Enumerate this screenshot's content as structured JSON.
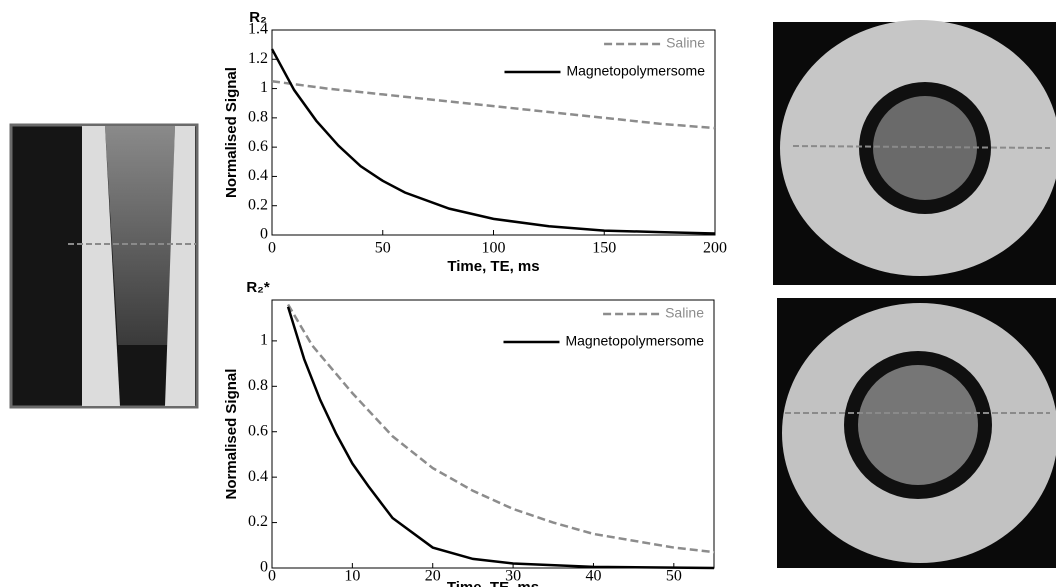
{
  "chart_data": [
    {
      "type": "line",
      "title": "R₂",
      "x_label": "Time, TE, ms",
      "y_label": "Normalised Signal",
      "xlim": [
        0,
        200
      ],
      "xticks": [
        0,
        50,
        100,
        150,
        200
      ],
      "ylim": [
        0,
        1.4
      ],
      "yticks": [
        0,
        0.2,
        0.4,
        0.6,
        0.8,
        1,
        1.2,
        1.4
      ],
      "legend": "upper right",
      "series": [
        {
          "name": "Saline",
          "color": "#8c8c8c",
          "dash": true,
          "x": [
            0,
            25,
            50,
            75,
            100,
            125,
            150,
            175,
            200
          ],
          "values": [
            1.05,
            1.0,
            0.96,
            0.92,
            0.88,
            0.84,
            0.8,
            0.76,
            0.73
          ]
        },
        {
          "name": "Magnetopolymersome",
          "color": "#000000",
          "dash": false,
          "x": [
            0,
            10,
            20,
            30,
            40,
            50,
            60,
            80,
            100,
            125,
            150,
            175,
            200
          ],
          "values": [
            1.27,
            0.99,
            0.78,
            0.61,
            0.47,
            0.37,
            0.29,
            0.18,
            0.11,
            0.06,
            0.03,
            0.02,
            0.01
          ]
        }
      ]
    },
    {
      "type": "line",
      "title": "R₂*",
      "x_label": "Time, TE, ms",
      "y_label": "Normalised Signal",
      "xlim": [
        0,
        55
      ],
      "xticks": [
        0,
        10,
        20,
        30,
        40,
        50
      ],
      "ylim": [
        0,
        1.18
      ],
      "yticks": [
        0,
        0.2,
        0.4,
        0.6,
        0.8,
        1
      ],
      "legend": "upper right",
      "series": [
        {
          "name": "Saline",
          "color": "#8c8c8c",
          "dash": true,
          "x": [
            2,
            5,
            10,
            15,
            20,
            25,
            30,
            35,
            40,
            45,
            50,
            55
          ],
          "values": [
            1.16,
            0.98,
            0.77,
            0.58,
            0.44,
            0.34,
            0.26,
            0.2,
            0.15,
            0.12,
            0.09,
            0.07
          ]
        },
        {
          "name": "Magnetopolymersome",
          "color": "#000000",
          "dash": false,
          "x": [
            2,
            4,
            6,
            8,
            10,
            12,
            15,
            20,
            25,
            30,
            40,
            55
          ],
          "values": [
            1.15,
            0.92,
            0.74,
            0.59,
            0.46,
            0.36,
            0.22,
            0.09,
            0.04,
            0.02,
            0.005,
            0
          ]
        }
      ]
    }
  ]
}
